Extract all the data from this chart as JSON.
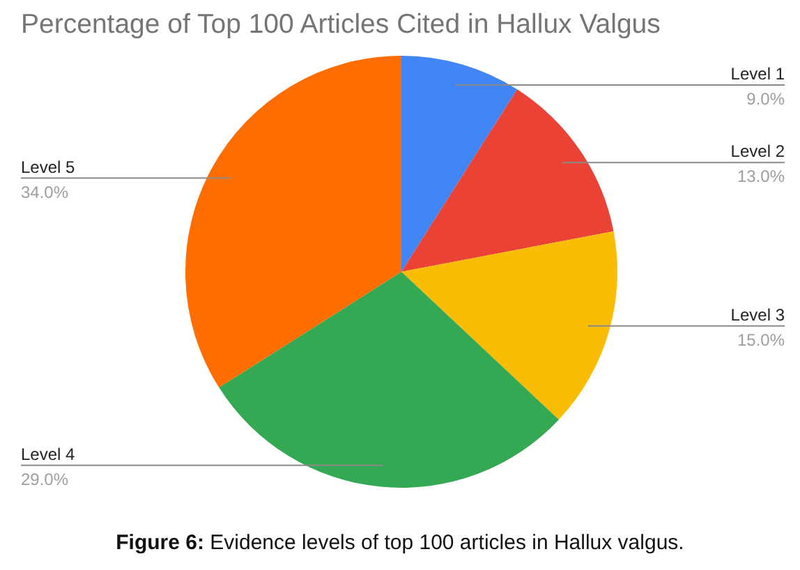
{
  "chart_data": {
    "type": "pie",
    "title": "Percentage of Top 100 Articles Cited in Hallux Valgus",
    "categories": [
      "Level 1",
      "Level 2",
      "Level 3",
      "Level 4",
      "Level 5"
    ],
    "values": [
      9,
      13,
      15,
      29,
      34
    ],
    "value_labels": [
      "9.0%",
      "13.0%",
      "15.0%",
      "29.0%",
      "34.0%"
    ],
    "colors": [
      "#4285f4",
      "#ea4335",
      "#fbbc04",
      "#34a853",
      "#ff6d01"
    ],
    "annotations": [
      "Figure 6: Evidence levels of top 100 articles in Hallux valgus."
    ]
  }
}
